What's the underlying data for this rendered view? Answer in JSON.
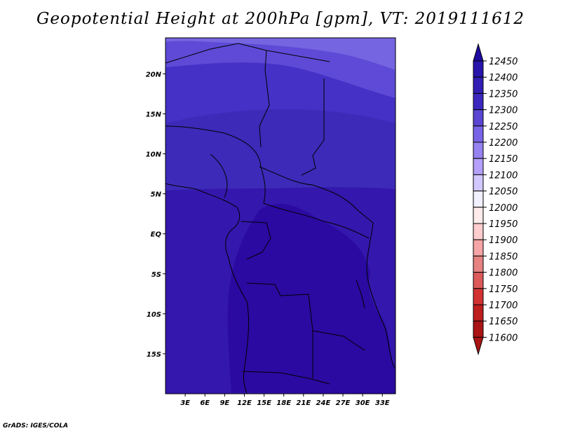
{
  "title": "Geopotential Height at 200hPa [gpm], VT: 2019111612",
  "credit": "GrADS: IGES/COLA",
  "map": {
    "lon_range": [
      0,
      35
    ],
    "lat_range": [
      -20,
      24.5
    ],
    "lat_ticks": [
      {
        "value": 20,
        "label": "20N"
      },
      {
        "value": 15,
        "label": "15N"
      },
      {
        "value": 10,
        "label": "10N"
      },
      {
        "value": 5,
        "label": "5N"
      },
      {
        "value": 0,
        "label": "EQ"
      },
      {
        "value": -5,
        "label": "5S"
      },
      {
        "value": -10,
        "label": "10S"
      },
      {
        "value": -15,
        "label": "15S"
      }
    ],
    "lon_ticks": [
      {
        "value": 3,
        "label": "3E"
      },
      {
        "value": 6,
        "label": "6E"
      },
      {
        "value": 9,
        "label": "9E"
      },
      {
        "value": 12,
        "label": "12E"
      },
      {
        "value": 15,
        "label": "15E"
      },
      {
        "value": 18,
        "label": "18E"
      },
      {
        "value": 21,
        "label": "21E"
      },
      {
        "value": 24,
        "label": "24E"
      },
      {
        "value": 27,
        "label": "27E"
      },
      {
        "value": 30,
        "label": "30E"
      },
      {
        "value": 33,
        "label": "33E"
      }
    ]
  },
  "colorbar": {
    "labels": [
      "12450",
      "12400",
      "12350",
      "12300",
      "12250",
      "12200",
      "12150",
      "12100",
      "12050",
      "12000",
      "11950",
      "11900",
      "11850",
      "11800",
      "11750",
      "11700",
      "11650",
      "11600"
    ],
    "colors": [
      "#1e0aa0",
      "#2814aa",
      "#321eb4",
      "#3c28be",
      "#5a46d2",
      "#7864e6",
      "#9682f0",
      "#b4a0fa",
      "#d2c8ff",
      "#f0f0ff",
      "#ffebeb",
      "#ffcdcd",
      "#f5a5a5",
      "#e68282",
      "#dc5a5a",
      "#d23232",
      "#be1e1e",
      "#aa1414"
    ]
  },
  "field_colors": {
    "c12450": "#2a0aa0",
    "c12400": "#3417ac",
    "c12350": "#3d2ab8",
    "c12300": "#4531c6",
    "c12250": "#5e4ad6",
    "c12200": "#7565e0",
    "border": "#000000"
  }
}
